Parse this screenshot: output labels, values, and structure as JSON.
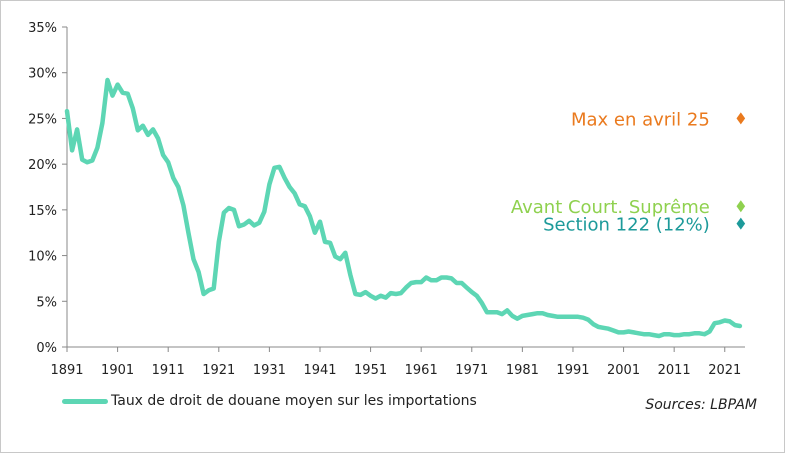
{
  "chart_data": {
    "type": "line",
    "title": "",
    "xlabel": "",
    "ylabel": "",
    "xlim": [
      1891,
      2025
    ],
    "ylim": [
      0,
      35
    ],
    "y_ticks": [
      "0%",
      "5%",
      "10%",
      "15%",
      "20%",
      "25%",
      "30%",
      "35%"
    ],
    "y_tick_values": [
      0,
      5,
      10,
      15,
      20,
      25,
      30,
      35
    ],
    "x_ticks": [
      "1891",
      "1901",
      "1911",
      "1921",
      "1931",
      "1941",
      "1951",
      "1961",
      "1971",
      "1981",
      "1991",
      "2001",
      "2011",
      "2021"
    ],
    "x_tick_values": [
      1891,
      1901,
      1911,
      1921,
      1931,
      1941,
      1951,
      1961,
      1971,
      1981,
      1991,
      2001,
      2011,
      2021
    ],
    "grid": false,
    "series": [
      {
        "name": "Taux de droit de douane moyen sur les importations",
        "color": "#5dd6b4",
        "x": [
          1891,
          1892,
          1893,
          1894,
          1895,
          1896,
          1897,
          1898,
          1899,
          1900,
          1901,
          1902,
          1903,
          1904,
          1905,
          1906,
          1907,
          1908,
          1909,
          1910,
          1911,
          1912,
          1913,
          1914,
          1915,
          1916,
          1917,
          1918,
          1919,
          1920,
          1921,
          1922,
          1923,
          1924,
          1925,
          1926,
          1927,
          1928,
          1929,
          1930,
          1931,
          1932,
          1933,
          1934,
          1935,
          1936,
          1937,
          1938,
          1939,
          1940,
          1941,
          1942,
          1943,
          1944,
          1945,
          1946,
          1947,
          1948,
          1949,
          1950,
          1951,
          1952,
          1953,
          1954,
          1955,
          1956,
          1957,
          1958,
          1959,
          1960,
          1961,
          1962,
          1963,
          1964,
          1965,
          1966,
          1967,
          1968,
          1969,
          1970,
          1971,
          1972,
          1973,
          1974,
          1975,
          1976,
          1977,
          1978,
          1979,
          1980,
          1981,
          1982,
          1983,
          1984,
          1985,
          1986,
          1987,
          1988,
          1989,
          1990,
          1991,
          1992,
          1993,
          1994,
          1995,
          1996,
          1997,
          1998,
          1999,
          2000,
          2001,
          2002,
          2003,
          2004,
          2005,
          2006,
          2007,
          2008,
          2009,
          2010,
          2011,
          2012,
          2013,
          2014,
          2015,
          2016,
          2017,
          2018,
          2019,
          2020,
          2021,
          2022,
          2023,
          2024
        ],
        "values": [
          25.8,
          21.5,
          23.8,
          20.5,
          20.2,
          20.4,
          21.8,
          24.5,
          29.2,
          27.5,
          28.7,
          27.8,
          27.7,
          26.1,
          23.7,
          24.2,
          23.2,
          23.8,
          22.8,
          21.0,
          20.2,
          18.5,
          17.5,
          15.5,
          12.5,
          9.6,
          8.2,
          5.8,
          6.2,
          6.4,
          11.5,
          14.7,
          15.2,
          15.0,
          13.2,
          13.4,
          13.8,
          13.3,
          13.6,
          14.8,
          17.8,
          19.6,
          19.7,
          18.5,
          17.5,
          16.8,
          15.6,
          15.4,
          14.3,
          12.5,
          13.7,
          11.5,
          11.4,
          9.9,
          9.6,
          10.3,
          7.9,
          5.8,
          5.7,
          6.0,
          5.6,
          5.3,
          5.6,
          5.4,
          5.9,
          5.8,
          5.9,
          6.5,
          7.0,
          7.1,
          7.1,
          7.6,
          7.3,
          7.3,
          7.6,
          7.6,
          7.5,
          7.0,
          7.0,
          6.5,
          6.0,
          5.6,
          4.8,
          3.8,
          3.8,
          3.8,
          3.6,
          4.0,
          3.4,
          3.1,
          3.4,
          3.5,
          3.6,
          3.7,
          3.7,
          3.5,
          3.4,
          3.3,
          3.3,
          3.3,
          3.3,
          3.3,
          3.2,
          3.0,
          2.5,
          2.2,
          2.1,
          2.0,
          1.8,
          1.6,
          1.6,
          1.7,
          1.6,
          1.5,
          1.4,
          1.4,
          1.3,
          1.2,
          1.4,
          1.4,
          1.3,
          1.3,
          1.4,
          1.4,
          1.5,
          1.5,
          1.4,
          1.7,
          2.6,
          2.7,
          2.9,
          2.8,
          2.4,
          2.3
        ]
      }
    ],
    "annotations": [
      {
        "label": "Max en avril 25",
        "year": 2022,
        "value": 25,
        "color": "#ea7a1e",
        "marker": "diamond"
      },
      {
        "label": "Avant Court. Suprême",
        "year": 2022,
        "value": 15.4,
        "color": "#8fd14f",
        "marker": "diamond"
      },
      {
        "label": "Section 122 (12%)",
        "year": 2022,
        "value": 13.5,
        "color": "#1d9a9a",
        "marker": "diamond"
      }
    ],
    "legend_position": "bottom-left"
  },
  "legend": {
    "label": "Taux de droit de douane moyen sur les importations",
    "color": "#5dd6b4"
  },
  "source": "Sources: LBPAM"
}
